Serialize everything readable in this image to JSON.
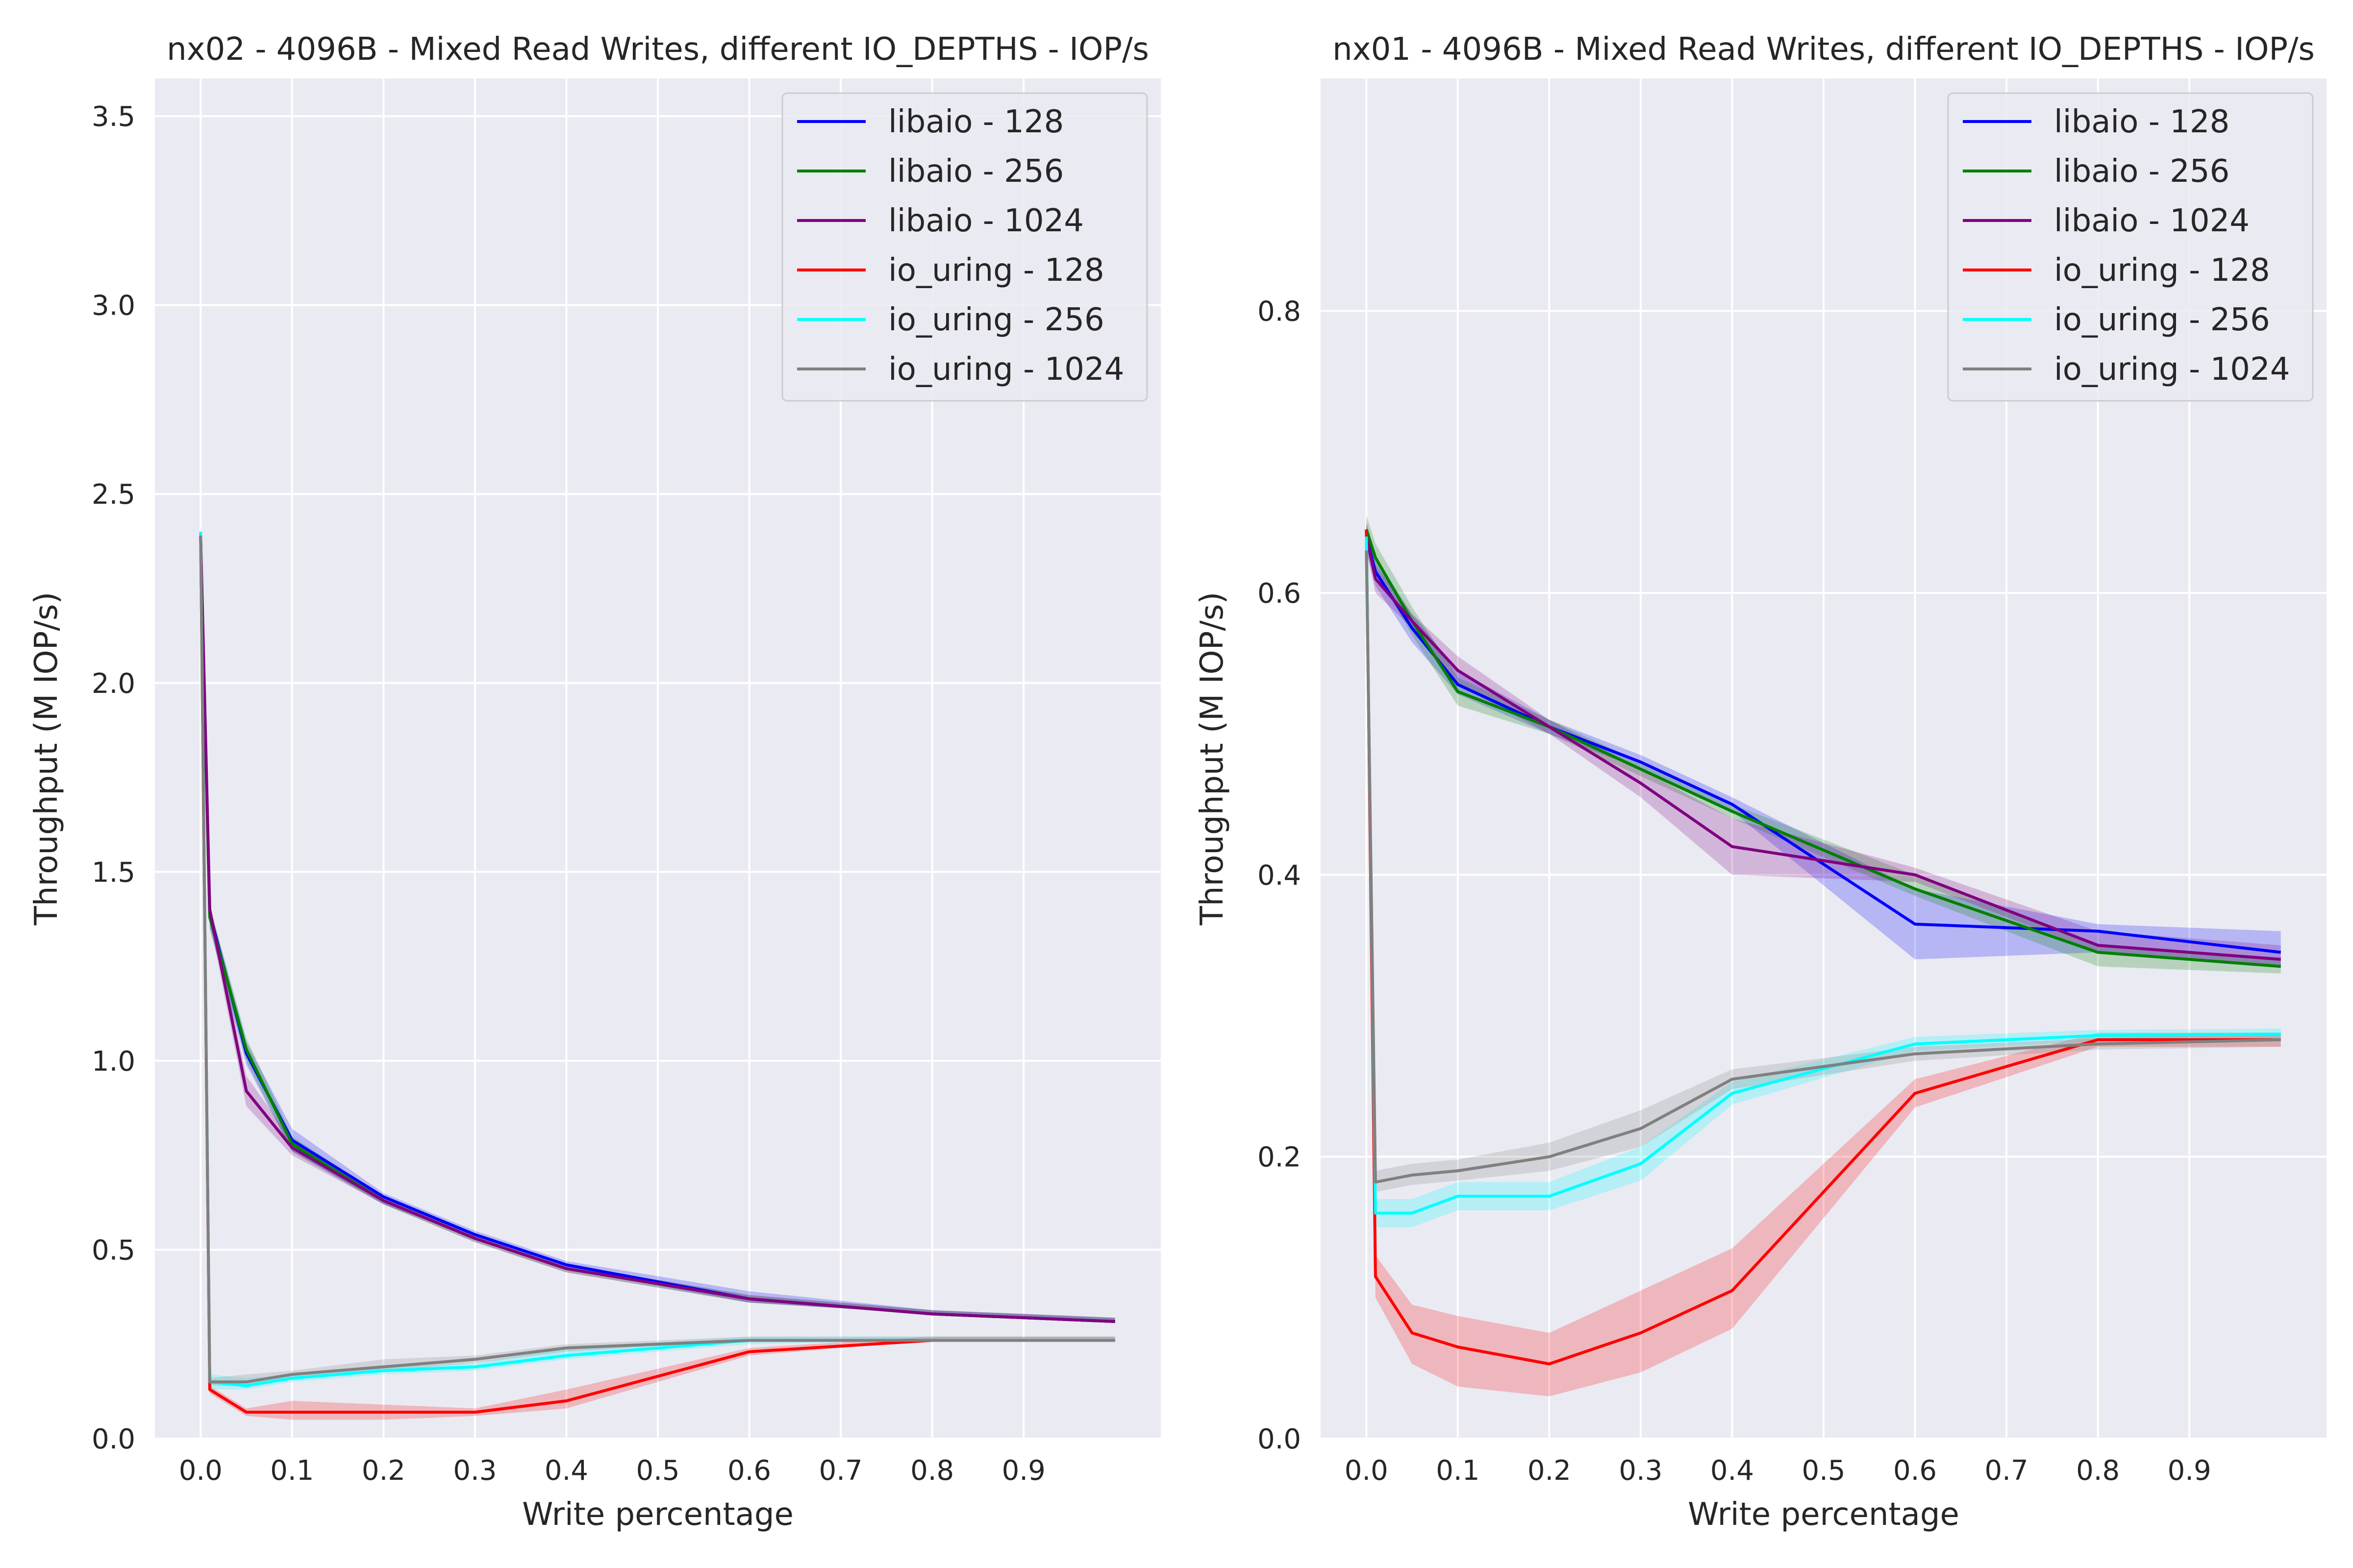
{
  "chart_data": [
    {
      "type": "line",
      "title": "nx02 - 4096B - Mixed Read Writes, different IO_DEPTHS - IOP/s",
      "xlabel": "Write percentage",
      "ylabel": "Throughput (M IOP/s)",
      "xlim": [
        -0.05,
        1.05
      ],
      "ylim": [
        0,
        3.6
      ],
      "xticks": [
        "0.0",
        "0.1",
        "0.2",
        "0.3",
        "0.4",
        "0.5",
        "0.6",
        "0.7",
        "0.8",
        "0.9"
      ],
      "yticks": [
        "0.0",
        "0.5",
        "1.0",
        "1.5",
        "2.0",
        "2.5",
        "3.0",
        "3.5"
      ],
      "grid": true,
      "legend_position": "top-right",
      "x": [
        0,
        0.01,
        0.05,
        0.1,
        0.2,
        0.3,
        0.4,
        0.6,
        0.8,
        1.0
      ],
      "series": [
        {
          "name": "libaio - 128",
          "color": "#0000ff",
          "values": [
            2.38,
            1.39,
            1.02,
            0.79,
            0.64,
            0.54,
            0.46,
            0.37,
            0.33,
            0.31
          ],
          "lower": [
            2.35,
            1.35,
            0.99,
            0.76,
            0.62,
            0.53,
            0.45,
            0.36,
            0.33,
            0.31
          ],
          "upper": [
            2.41,
            1.41,
            1.05,
            0.82,
            0.65,
            0.55,
            0.47,
            0.39,
            0.34,
            0.32
          ]
        },
        {
          "name": "libaio - 256",
          "color": "#008000",
          "values": [
            2.38,
            1.38,
            1.03,
            0.78,
            0.63,
            0.53,
            0.45,
            0.37,
            0.33,
            0.31
          ],
          "lower": [
            2.35,
            1.35,
            1.0,
            0.76,
            0.62,
            0.52,
            0.44,
            0.36,
            0.33,
            0.31
          ],
          "upper": [
            2.41,
            1.41,
            1.06,
            0.8,
            0.64,
            0.54,
            0.46,
            0.38,
            0.34,
            0.32
          ]
        },
        {
          "name": "libaio - 1024",
          "color": "#800080",
          "values": [
            2.39,
            1.4,
            0.92,
            0.77,
            0.63,
            0.53,
            0.45,
            0.37,
            0.33,
            0.31
          ],
          "lower": [
            2.36,
            1.37,
            0.88,
            0.75,
            0.62,
            0.52,
            0.44,
            0.36,
            0.33,
            0.31
          ],
          "upper": [
            2.42,
            1.42,
            0.96,
            0.79,
            0.64,
            0.54,
            0.46,
            0.38,
            0.34,
            0.32
          ]
        },
        {
          "name": "io_uring - 128",
          "color": "#ff0000",
          "values": [
            2.39,
            0.13,
            0.07,
            0.07,
            0.07,
            0.07,
            0.1,
            0.23,
            0.26,
            0.26
          ],
          "lower": [
            2.36,
            0.12,
            0.06,
            0.05,
            0.05,
            0.06,
            0.08,
            0.22,
            0.26,
            0.26
          ],
          "upper": [
            2.42,
            0.14,
            0.08,
            0.1,
            0.09,
            0.08,
            0.13,
            0.24,
            0.27,
            0.27
          ]
        },
        {
          "name": "io_uring - 256",
          "color": "#00ffff",
          "values": [
            2.4,
            0.15,
            0.14,
            0.16,
            0.18,
            0.19,
            0.22,
            0.26,
            0.26,
            0.26
          ],
          "lower": [
            2.37,
            0.13,
            0.13,
            0.15,
            0.17,
            0.18,
            0.21,
            0.25,
            0.26,
            0.26
          ],
          "upper": [
            2.43,
            0.17,
            0.16,
            0.17,
            0.19,
            0.2,
            0.24,
            0.27,
            0.27,
            0.27
          ]
        },
        {
          "name": "io_uring - 1024",
          "color": "#808080",
          "values": [
            2.39,
            0.15,
            0.15,
            0.17,
            0.19,
            0.21,
            0.24,
            0.26,
            0.26,
            0.26
          ],
          "lower": [
            2.36,
            0.14,
            0.14,
            0.16,
            0.18,
            0.2,
            0.23,
            0.26,
            0.26,
            0.26
          ],
          "upper": [
            2.42,
            0.16,
            0.17,
            0.18,
            0.21,
            0.22,
            0.25,
            0.27,
            0.27,
            0.27
          ]
        }
      ]
    },
    {
      "type": "line",
      "title": "nx01 - 4096B - Mixed Read Writes, different IO_DEPTHS - IOP/s",
      "xlabel": "Write percentage",
      "ylabel": "Throughput (M IOP/s)",
      "xlim": [
        -0.05,
        1.05
      ],
      "ylim": [
        0,
        0.965
      ],
      "xticks": [
        "0.0",
        "0.1",
        "0.2",
        "0.3",
        "0.4",
        "0.5",
        "0.6",
        "0.7",
        "0.8",
        "0.9"
      ],
      "yticks": [
        "0.0",
        "0.2",
        "0.4",
        "0.6",
        "0.8"
      ],
      "grid": true,
      "legend_position": "top-right",
      "x": [
        0,
        0.01,
        0.05,
        0.1,
        0.2,
        0.3,
        0.4,
        0.6,
        0.8,
        1.0
      ],
      "series": [
        {
          "name": "libaio - 128",
          "color": "#0000ff",
          "values": [
            0.64,
            0.615,
            0.575,
            0.535,
            0.505,
            0.48,
            0.45,
            0.365,
            0.36,
            0.345
          ],
          "lower": [
            0.63,
            0.605,
            0.565,
            0.528,
            0.5,
            0.475,
            0.445,
            0.34,
            0.345,
            0.335
          ],
          "upper": [
            0.65,
            0.625,
            0.585,
            0.545,
            0.51,
            0.485,
            0.455,
            0.39,
            0.365,
            0.36
          ]
        },
        {
          "name": "libaio - 256",
          "color": "#008000",
          "values": [
            0.645,
            0.625,
            0.58,
            0.53,
            0.505,
            0.475,
            0.445,
            0.39,
            0.345,
            0.335
          ],
          "lower": [
            0.635,
            0.615,
            0.57,
            0.52,
            0.5,
            0.47,
            0.44,
            0.385,
            0.335,
            0.33
          ],
          "upper": [
            0.655,
            0.635,
            0.59,
            0.54,
            0.51,
            0.48,
            0.45,
            0.4,
            0.35,
            0.34
          ]
        },
        {
          "name": "libaio - 1024",
          "color": "#800080",
          "values": [
            0.64,
            0.61,
            0.58,
            0.545,
            0.505,
            0.465,
            0.42,
            0.4,
            0.35,
            0.34
          ],
          "lower": [
            0.63,
            0.6,
            0.575,
            0.535,
            0.5,
            0.455,
            0.4,
            0.395,
            0.345,
            0.335
          ],
          "upper": [
            0.65,
            0.62,
            0.585,
            0.555,
            0.51,
            0.475,
            0.44,
            0.405,
            0.36,
            0.35
          ]
        },
        {
          "name": "io_uring - 128",
          "color": "#ff0000",
          "values": [
            0.645,
            0.115,
            0.075,
            0.065,
            0.053,
            0.075,
            0.105,
            0.245,
            0.283,
            0.283
          ],
          "lower": [
            0.635,
            0.1,
            0.053,
            0.037,
            0.03,
            0.047,
            0.078,
            0.235,
            0.278,
            0.278
          ],
          "upper": [
            0.655,
            0.13,
            0.095,
            0.087,
            0.075,
            0.105,
            0.135,
            0.255,
            0.288,
            0.288
          ]
        },
        {
          "name": "io_uring - 256",
          "color": "#00ffff",
          "values": [
            0.64,
            0.16,
            0.16,
            0.172,
            0.172,
            0.195,
            0.245,
            0.28,
            0.286,
            0.287
          ],
          "lower": [
            0.63,
            0.15,
            0.15,
            0.162,
            0.162,
            0.183,
            0.237,
            0.275,
            0.282,
            0.283
          ],
          "upper": [
            0.65,
            0.17,
            0.17,
            0.182,
            0.182,
            0.207,
            0.253,
            0.285,
            0.29,
            0.291
          ]
        },
        {
          "name": "io_uring - 1024",
          "color": "#808080",
          "values": [
            0.63,
            0.182,
            0.187,
            0.19,
            0.2,
            0.22,
            0.255,
            0.273,
            0.28,
            0.283
          ],
          "lower": [
            0.62,
            0.175,
            0.18,
            0.183,
            0.19,
            0.207,
            0.248,
            0.268,
            0.276,
            0.278
          ],
          "upper": [
            0.64,
            0.19,
            0.195,
            0.198,
            0.21,
            0.233,
            0.262,
            0.278,
            0.284,
            0.288
          ]
        }
      ]
    }
  ]
}
